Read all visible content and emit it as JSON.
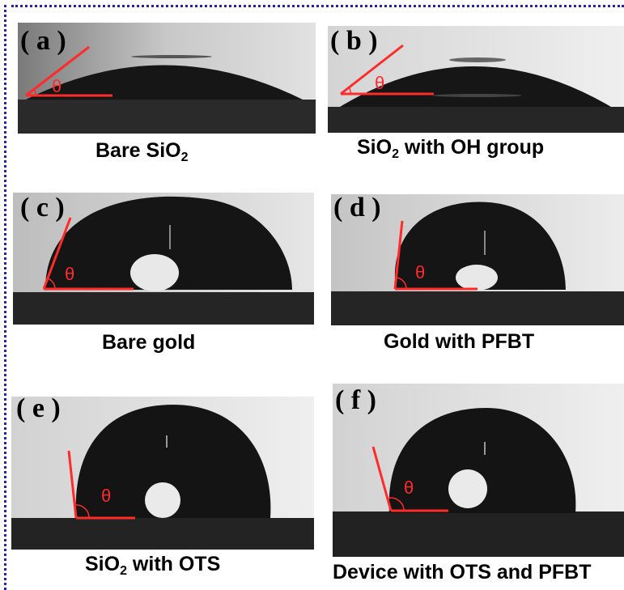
{
  "panels": [
    {
      "id": "a",
      "label": "( a )",
      "caption_main": "Bare SiO",
      "caption_sub": "2",
      "caption_rest": "",
      "angle_symbol": "θ"
    },
    {
      "id": "b",
      "label": "( b )",
      "caption_main": "SiO",
      "caption_sub": "2",
      "caption_rest": " with OH group",
      "angle_symbol": "θ"
    },
    {
      "id": "c",
      "label": "( c )",
      "caption_main": "Bare gold",
      "caption_sub": "",
      "caption_rest": "",
      "angle_symbol": "θ"
    },
    {
      "id": "d",
      "label": "( d )",
      "caption_main": "Gold with PFBT",
      "caption_sub": "",
      "caption_rest": "",
      "angle_symbol": "θ"
    },
    {
      "id": "e",
      "label": "( e )",
      "caption_main": "SiO",
      "caption_sub": "2",
      "caption_rest": " with OTS",
      "angle_symbol": "θ"
    },
    {
      "id": "f",
      "label": "( f )",
      "caption_main": "Device with OTS and PFBT",
      "caption_sub": "",
      "caption_rest": "",
      "angle_symbol": "θ"
    }
  ],
  "colors": {
    "border": "#2222aa",
    "angle_lines": "#ff2a2a",
    "droplet": "#151515"
  }
}
